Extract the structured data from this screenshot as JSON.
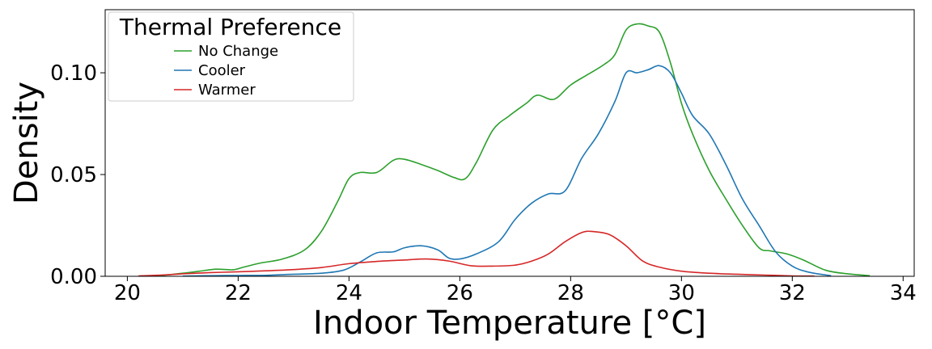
{
  "chart_data": {
    "type": "line",
    "title": "",
    "xlabel": "Indoor Temperature [°C]",
    "ylabel": "Density",
    "xlim": [
      19.6,
      34.2
    ],
    "ylim": [
      0,
      0.131
    ],
    "xticks": [
      20,
      22,
      24,
      26,
      28,
      30,
      32,
      34
    ],
    "xtick_labels": [
      "20",
      "22",
      "24",
      "26",
      "28",
      "30",
      "32",
      "34"
    ],
    "yticks": [
      0,
      0.05,
      0.1
    ],
    "ytick_labels": [
      "0.00",
      "0.05",
      "0.10"
    ],
    "grid": false,
    "legend": {
      "title": "Thermal Preference",
      "placement": "top-left",
      "entries": [
        "No Change",
        "Cooler",
        "Warmer"
      ]
    },
    "series": [
      {
        "name": "No Change",
        "color": "#2ca02c",
        "x": [
          20.2,
          20.6,
          21.0,
          21.3,
          21.6,
          21.9,
          22.1,
          22.4,
          22.8,
          23.2,
          23.5,
          23.8,
          24.0,
          24.2,
          24.5,
          24.8,
          25.0,
          25.3,
          25.6,
          25.9,
          26.1,
          26.3,
          26.6,
          26.9,
          27.2,
          27.4,
          27.7,
          28.0,
          28.3,
          28.6,
          28.8,
          29.0,
          29.2,
          29.4,
          29.6,
          29.8,
          30.0,
          30.2,
          30.5,
          30.8,
          31.1,
          31.4,
          31.6,
          31.9,
          32.2,
          32.6,
          33.0,
          33.4
        ],
        "y": [
          0.0001,
          0.0004,
          0.0015,
          0.0025,
          0.0035,
          0.0032,
          0.0045,
          0.0065,
          0.0085,
          0.013,
          0.022,
          0.037,
          0.048,
          0.051,
          0.051,
          0.057,
          0.0575,
          0.055,
          0.052,
          0.0485,
          0.048,
          0.056,
          0.072,
          0.079,
          0.085,
          0.089,
          0.087,
          0.094,
          0.099,
          0.104,
          0.109,
          0.121,
          0.124,
          0.123,
          0.12,
          0.105,
          0.085,
          0.07,
          0.052,
          0.038,
          0.025,
          0.014,
          0.0125,
          0.011,
          0.008,
          0.003,
          0.0012,
          0.0003
        ]
      },
      {
        "name": "Cooler",
        "color": "#1f77b4",
        "x": [
          21.0,
          21.5,
          22.0,
          22.5,
          23.0,
          23.5,
          23.9,
          24.2,
          24.5,
          24.8,
          25.0,
          25.3,
          25.6,
          25.8,
          26.0,
          26.3,
          26.7,
          27.0,
          27.3,
          27.6,
          27.9,
          28.2,
          28.5,
          28.8,
          29.0,
          29.2,
          29.4,
          29.6,
          29.8,
          30.0,
          30.2,
          30.5,
          30.8,
          31.1,
          31.4,
          31.7,
          32.0,
          32.3,
          32.7
        ],
        "y": [
          0.0001,
          0.0003,
          0.0004,
          0.0005,
          0.001,
          0.0015,
          0.003,
          0.007,
          0.0115,
          0.012,
          0.014,
          0.015,
          0.013,
          0.009,
          0.0085,
          0.011,
          0.017,
          0.028,
          0.036,
          0.0405,
          0.042,
          0.058,
          0.07,
          0.086,
          0.1,
          0.1,
          0.1015,
          0.1035,
          0.1,
          0.09,
          0.079,
          0.07,
          0.055,
          0.038,
          0.025,
          0.012,
          0.005,
          0.002,
          0.0003
        ]
      },
      {
        "name": "Warmer",
        "color": "#d62728",
        "x": [
          20.2,
          20.6,
          21.0,
          21.5,
          22.0,
          22.5,
          23.0,
          23.5,
          24.0,
          24.5,
          25.0,
          25.4,
          25.8,
          26.2,
          26.6,
          27.0,
          27.3,
          27.6,
          27.9,
          28.2,
          28.4,
          28.7,
          29.0,
          29.3,
          29.6,
          30.0,
          30.5,
          31.0,
          31.5,
          32.0,
          32.4
        ],
        "y": [
          0.0002,
          0.0006,
          0.0012,
          0.0018,
          0.0022,
          0.0027,
          0.0033,
          0.0043,
          0.0062,
          0.0073,
          0.008,
          0.0085,
          0.0075,
          0.0052,
          0.005,
          0.0055,
          0.0075,
          0.011,
          0.017,
          0.0215,
          0.022,
          0.0205,
          0.015,
          0.0075,
          0.0045,
          0.0025,
          0.0015,
          0.001,
          0.0006,
          0.0002,
          0.0001
        ]
      }
    ]
  }
}
